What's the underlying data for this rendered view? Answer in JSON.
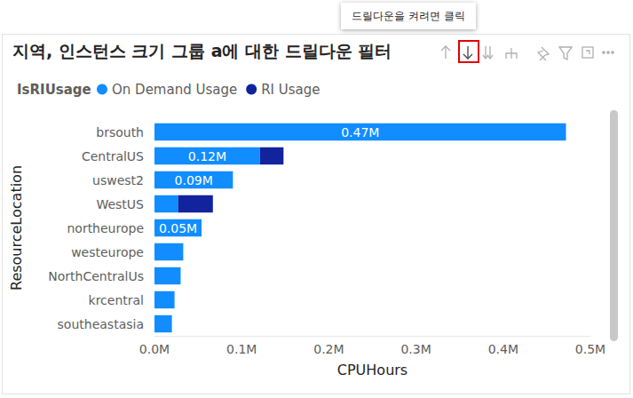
{
  "chart_data": {
    "type": "bar",
    "title": "지역, 인스턴스 크기 그룹 a에 대한 드릴다운 필터",
    "annotations": [
      "드릴다운을 켜려면 클릭"
    ],
    "legend_title": "IsRIUsage",
    "x_label": "CPUHours",
    "y_label": "ResourceLocation",
    "orientation": "horizontal",
    "stacked": true,
    "grid": false,
    "categories": [
      "brsouth",
      "CentralUS",
      "uswest2",
      "WestUS",
      "northeurope",
      "westeurope",
      "NorthCentralUs",
      "krcentral",
      "southeastasia"
    ],
    "series": [
      {
        "name": "On Demand Usage",
        "color": "#118dff",
        "values": [
          472000,
          121000,
          90000,
          27000,
          54000,
          33000,
          30000,
          23000,
          20000
        ],
        "data_labels": true,
        "value_labels": [
          "0.47M",
          "0.12M",
          "0.09M",
          null,
          "0.05M",
          null,
          null,
          null,
          null
        ]
      },
      {
        "name": "RI Usage",
        "color": "#12239e",
        "values": [
          0,
          27000,
          0,
          40000,
          0,
          0,
          0,
          0,
          0
        ]
      }
    ],
    "xlim": [
      0,
      500000
    ],
    "xticks": [
      {
        "value": 0,
        "label": "0.0M"
      },
      {
        "value": 100000,
        "label": "0.1M"
      },
      {
        "value": 200000,
        "label": "0.2M"
      },
      {
        "value": 300000,
        "label": "0.3M"
      },
      {
        "value": 400000,
        "label": "0.4M"
      },
      {
        "value": 500000,
        "label": "0.5M"
      }
    ]
  }
}
